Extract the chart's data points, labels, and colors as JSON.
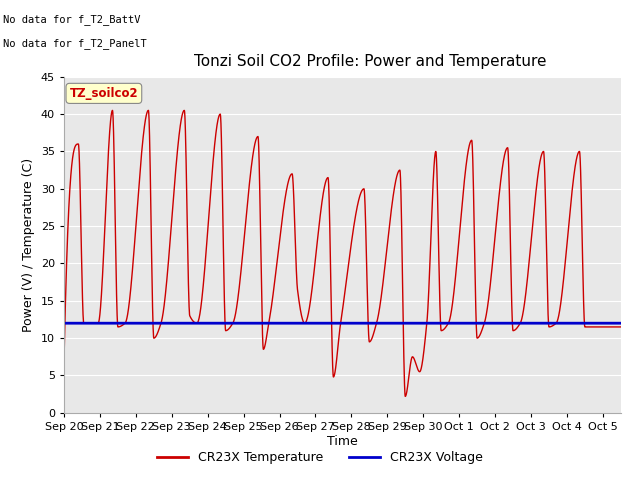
{
  "title": "Tonzi Soil CO2 Profile: Power and Temperature",
  "ylabel": "Power (V) / Temperature (C)",
  "xlabel": "Time",
  "annotation_lines": [
    "No data for f_T2_BattV",
    "No data for f_T2_PanelT"
  ],
  "box_label": "TZ_soilco2",
  "ylim": [
    0,
    45
  ],
  "yticks": [
    0,
    5,
    10,
    15,
    20,
    25,
    30,
    35,
    40,
    45
  ],
  "xtick_labels": [
    "Sep 20",
    "Sep 21",
    "Sep 22",
    "Sep 23",
    "Sep 24",
    "Sep 25",
    "Sep 26",
    "Sep 27",
    "Sep 28",
    "Sep 29",
    "Sep 30",
    "Oct 1",
    "Oct 2",
    "Oct 3",
    "Oct 4",
    "Oct 5"
  ],
  "legend_entries": [
    "CR23X Temperature",
    "CR23X Voltage"
  ],
  "legend_colors": [
    "#cc0000",
    "#0000cc"
  ],
  "temp_color": "#cc0000",
  "voltage_color": "#0000cc",
  "voltage_value": 12.0,
  "plot_bg_color": "#e8e8e8",
  "grid_color": "#ffffff",
  "title_fontsize": 11,
  "axis_fontsize": 9,
  "tick_fontsize": 8,
  "peaks": [
    {
      "day": 0.0,
      "val": 7.0
    },
    {
      "day": 0.4,
      "val": 36.0
    },
    {
      "day": 0.55,
      "val": 12.0
    },
    {
      "day": 0.95,
      "val": 12.0
    },
    {
      "day": 1.35,
      "val": 40.5
    },
    {
      "day": 1.5,
      "val": 11.5
    },
    {
      "day": 1.7,
      "val": 12.0
    },
    {
      "day": 2.35,
      "val": 40.5
    },
    {
      "day": 2.5,
      "val": 10.0
    },
    {
      "day": 2.7,
      "val": 12.0
    },
    {
      "day": 3.35,
      "val": 40.5
    },
    {
      "day": 3.5,
      "val": 13.0
    },
    {
      "day": 3.7,
      "val": 12.0
    },
    {
      "day": 4.35,
      "val": 40.0
    },
    {
      "day": 4.5,
      "val": 11.0
    },
    {
      "day": 4.7,
      "val": 12.0
    },
    {
      "day": 5.4,
      "val": 37.0
    },
    {
      "day": 5.55,
      "val": 8.5
    },
    {
      "day": 5.7,
      "val": 12.0
    },
    {
      "day": 6.35,
      "val": 32.0
    },
    {
      "day": 6.5,
      "val": 16.5
    },
    {
      "day": 6.7,
      "val": 12.0
    },
    {
      "day": 7.35,
      "val": 31.5
    },
    {
      "day": 7.5,
      "val": 4.8
    },
    {
      "day": 7.7,
      "val": 12.0
    },
    {
      "day": 8.35,
      "val": 30.0
    },
    {
      "day": 8.5,
      "val": 9.5
    },
    {
      "day": 8.7,
      "val": 12.0
    },
    {
      "day": 9.35,
      "val": 32.5
    },
    {
      "day": 9.5,
      "val": 2.2
    },
    {
      "day": 9.7,
      "val": 7.5
    },
    {
      "day": 9.9,
      "val": 5.5
    },
    {
      "day": 10.1,
      "val": 12.0
    },
    {
      "day": 10.35,
      "val": 35.0
    },
    {
      "day": 10.5,
      "val": 11.0
    },
    {
      "day": 10.7,
      "val": 12.0
    },
    {
      "day": 11.35,
      "val": 36.5
    },
    {
      "day": 11.5,
      "val": 10.0
    },
    {
      "day": 11.7,
      "val": 12.0
    },
    {
      "day": 12.35,
      "val": 35.5
    },
    {
      "day": 12.5,
      "val": 11.0
    },
    {
      "day": 12.7,
      "val": 12.0
    },
    {
      "day": 13.35,
      "val": 35.0
    },
    {
      "day": 13.5,
      "val": 11.5
    },
    {
      "day": 13.7,
      "val": 12.0
    },
    {
      "day": 14.35,
      "val": 35.0
    },
    {
      "day": 14.5,
      "val": 11.5
    },
    {
      "day": 15.0,
      "val": 11.5
    }
  ]
}
